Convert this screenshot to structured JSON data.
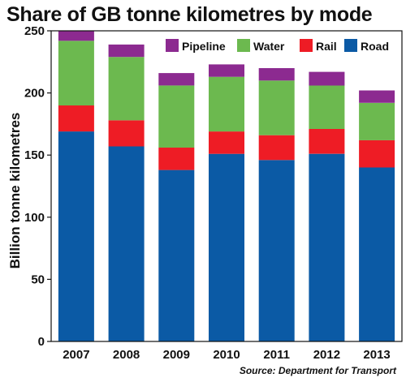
{
  "chart_data": {
    "type": "bar",
    "stacked": true,
    "title": "Share of GB tonne kilometres by mode",
    "xlabel": "",
    "ylabel": "Billion tonne kilometres",
    "categories": [
      "2007",
      "2008",
      "2009",
      "2010",
      "2011",
      "2012",
      "2013"
    ],
    "ylim": [
      0,
      250
    ],
    "yticks": [
      0,
      50,
      100,
      150,
      200,
      250
    ],
    "grid": false,
    "legend_position": "top-right",
    "series": [
      {
        "name": "Road",
        "color": "#0b5aa5",
        "values": [
          169,
          157,
          138,
          151,
          146,
          151,
          140
        ]
      },
      {
        "name": "Rail",
        "color": "#ee1c25",
        "values": [
          21,
          21,
          18,
          18,
          20,
          20,
          22
        ]
      },
      {
        "name": "Water",
        "color": "#6cb94f",
        "values": [
          52,
          51,
          50,
          44,
          44,
          35,
          30
        ]
      },
      {
        "name": "Pipeline",
        "color": "#8c2a90",
        "values": [
          10,
          10,
          10,
          10,
          10,
          11,
          10
        ]
      }
    ],
    "legend_order": [
      "Pipeline",
      "Water",
      "Rail",
      "Road"
    ],
    "source": "Source: Department for Transport"
  }
}
